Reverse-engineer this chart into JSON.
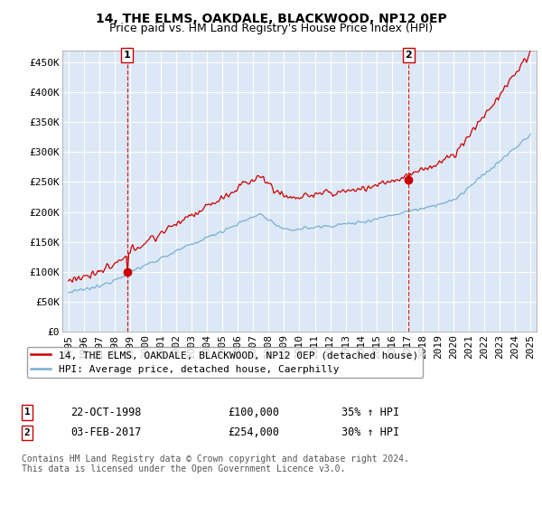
{
  "title": "14, THE ELMS, OAKDALE, BLACKWOOD, NP12 0EP",
  "subtitle": "Price paid vs. HM Land Registry's House Price Index (HPI)",
  "ylim": [
    0,
    470000
  ],
  "yticks": [
    0,
    50000,
    100000,
    150000,
    200000,
    250000,
    300000,
    350000,
    400000,
    450000
  ],
  "ytick_labels": [
    "£0",
    "£50K",
    "£100K",
    "£150K",
    "£200K",
    "£250K",
    "£300K",
    "£350K",
    "£400K",
    "£450K"
  ],
  "xlim_left": 1994.6,
  "xlim_right": 2025.4,
  "background_color": "#ffffff",
  "plot_bg_color": "#dce8f5",
  "grid_color": "#ffffff",
  "red_line_color": "#cc0000",
  "blue_line_color": "#7aafd4",
  "marker1_date_x": 1998.8,
  "marker1_y": 100000,
  "marker2_date_x": 2017.08,
  "marker2_y": 254000,
  "vline1_x": 1998.8,
  "vline2_x": 2017.08,
  "annotation1": {
    "num": "1",
    "date": "22-OCT-1998",
    "price": "£100,000",
    "hpi": "35% ↑ HPI"
  },
  "annotation2": {
    "num": "2",
    "date": "03-FEB-2017",
    "price": "£254,000",
    "hpi": "30% ↑ HPI"
  },
  "legend_label_red": "14, THE ELMS, OAKDALE, BLACKWOOD, NP12 0EP (detached house)",
  "legend_label_blue": "HPI: Average price, detached house, Caerphilly",
  "footnote": "Contains HM Land Registry data © Crown copyright and database right 2024.\nThis data is licensed under the Open Government Licence v3.0.",
  "title_fontsize": 10,
  "subtitle_fontsize": 9,
  "tick_fontsize": 8,
  "legend_fontsize": 8,
  "footnote_fontsize": 7
}
